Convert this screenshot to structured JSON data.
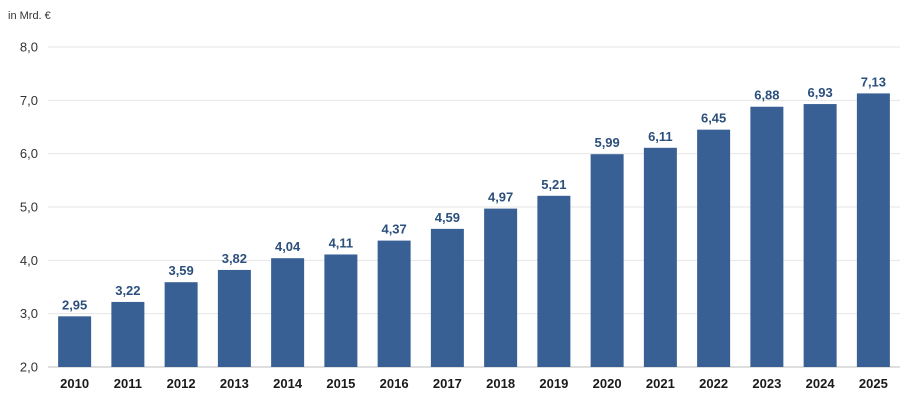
{
  "chart_data": {
    "type": "bar",
    "unit_label": "in Mrd. €",
    "categories": [
      "2010",
      "2011",
      "2012",
      "2013",
      "2014",
      "2015",
      "2016",
      "2017",
      "2018",
      "2019",
      "2020",
      "2021",
      "2022",
      "2023",
      "2024",
      "2025"
    ],
    "values": [
      2.95,
      3.22,
      3.59,
      3.82,
      4.04,
      4.11,
      4.37,
      4.59,
      4.97,
      5.21,
      5.99,
      6.11,
      6.45,
      6.88,
      6.93,
      7.13
    ],
    "value_labels": [
      "2,95",
      "3,22",
      "3,59",
      "3,82",
      "4,04",
      "4,11",
      "4,37",
      "4,59",
      "4,97",
      "5,21",
      "5,99",
      "6,11",
      "6,45",
      "6,88",
      "6,93",
      "7,13"
    ],
    "y_ticks": [
      2.0,
      3.0,
      4.0,
      5.0,
      6.0,
      7.0,
      8.0
    ],
    "y_tick_labels": [
      "2,0",
      "3,0",
      "4,0",
      "5,0",
      "6,0",
      "7,0",
      "8,0"
    ],
    "ylim": [
      2.0,
      8.0
    ],
    "grid": true,
    "bar_color": "#386094",
    "label_color": "#2c4f7c"
  }
}
